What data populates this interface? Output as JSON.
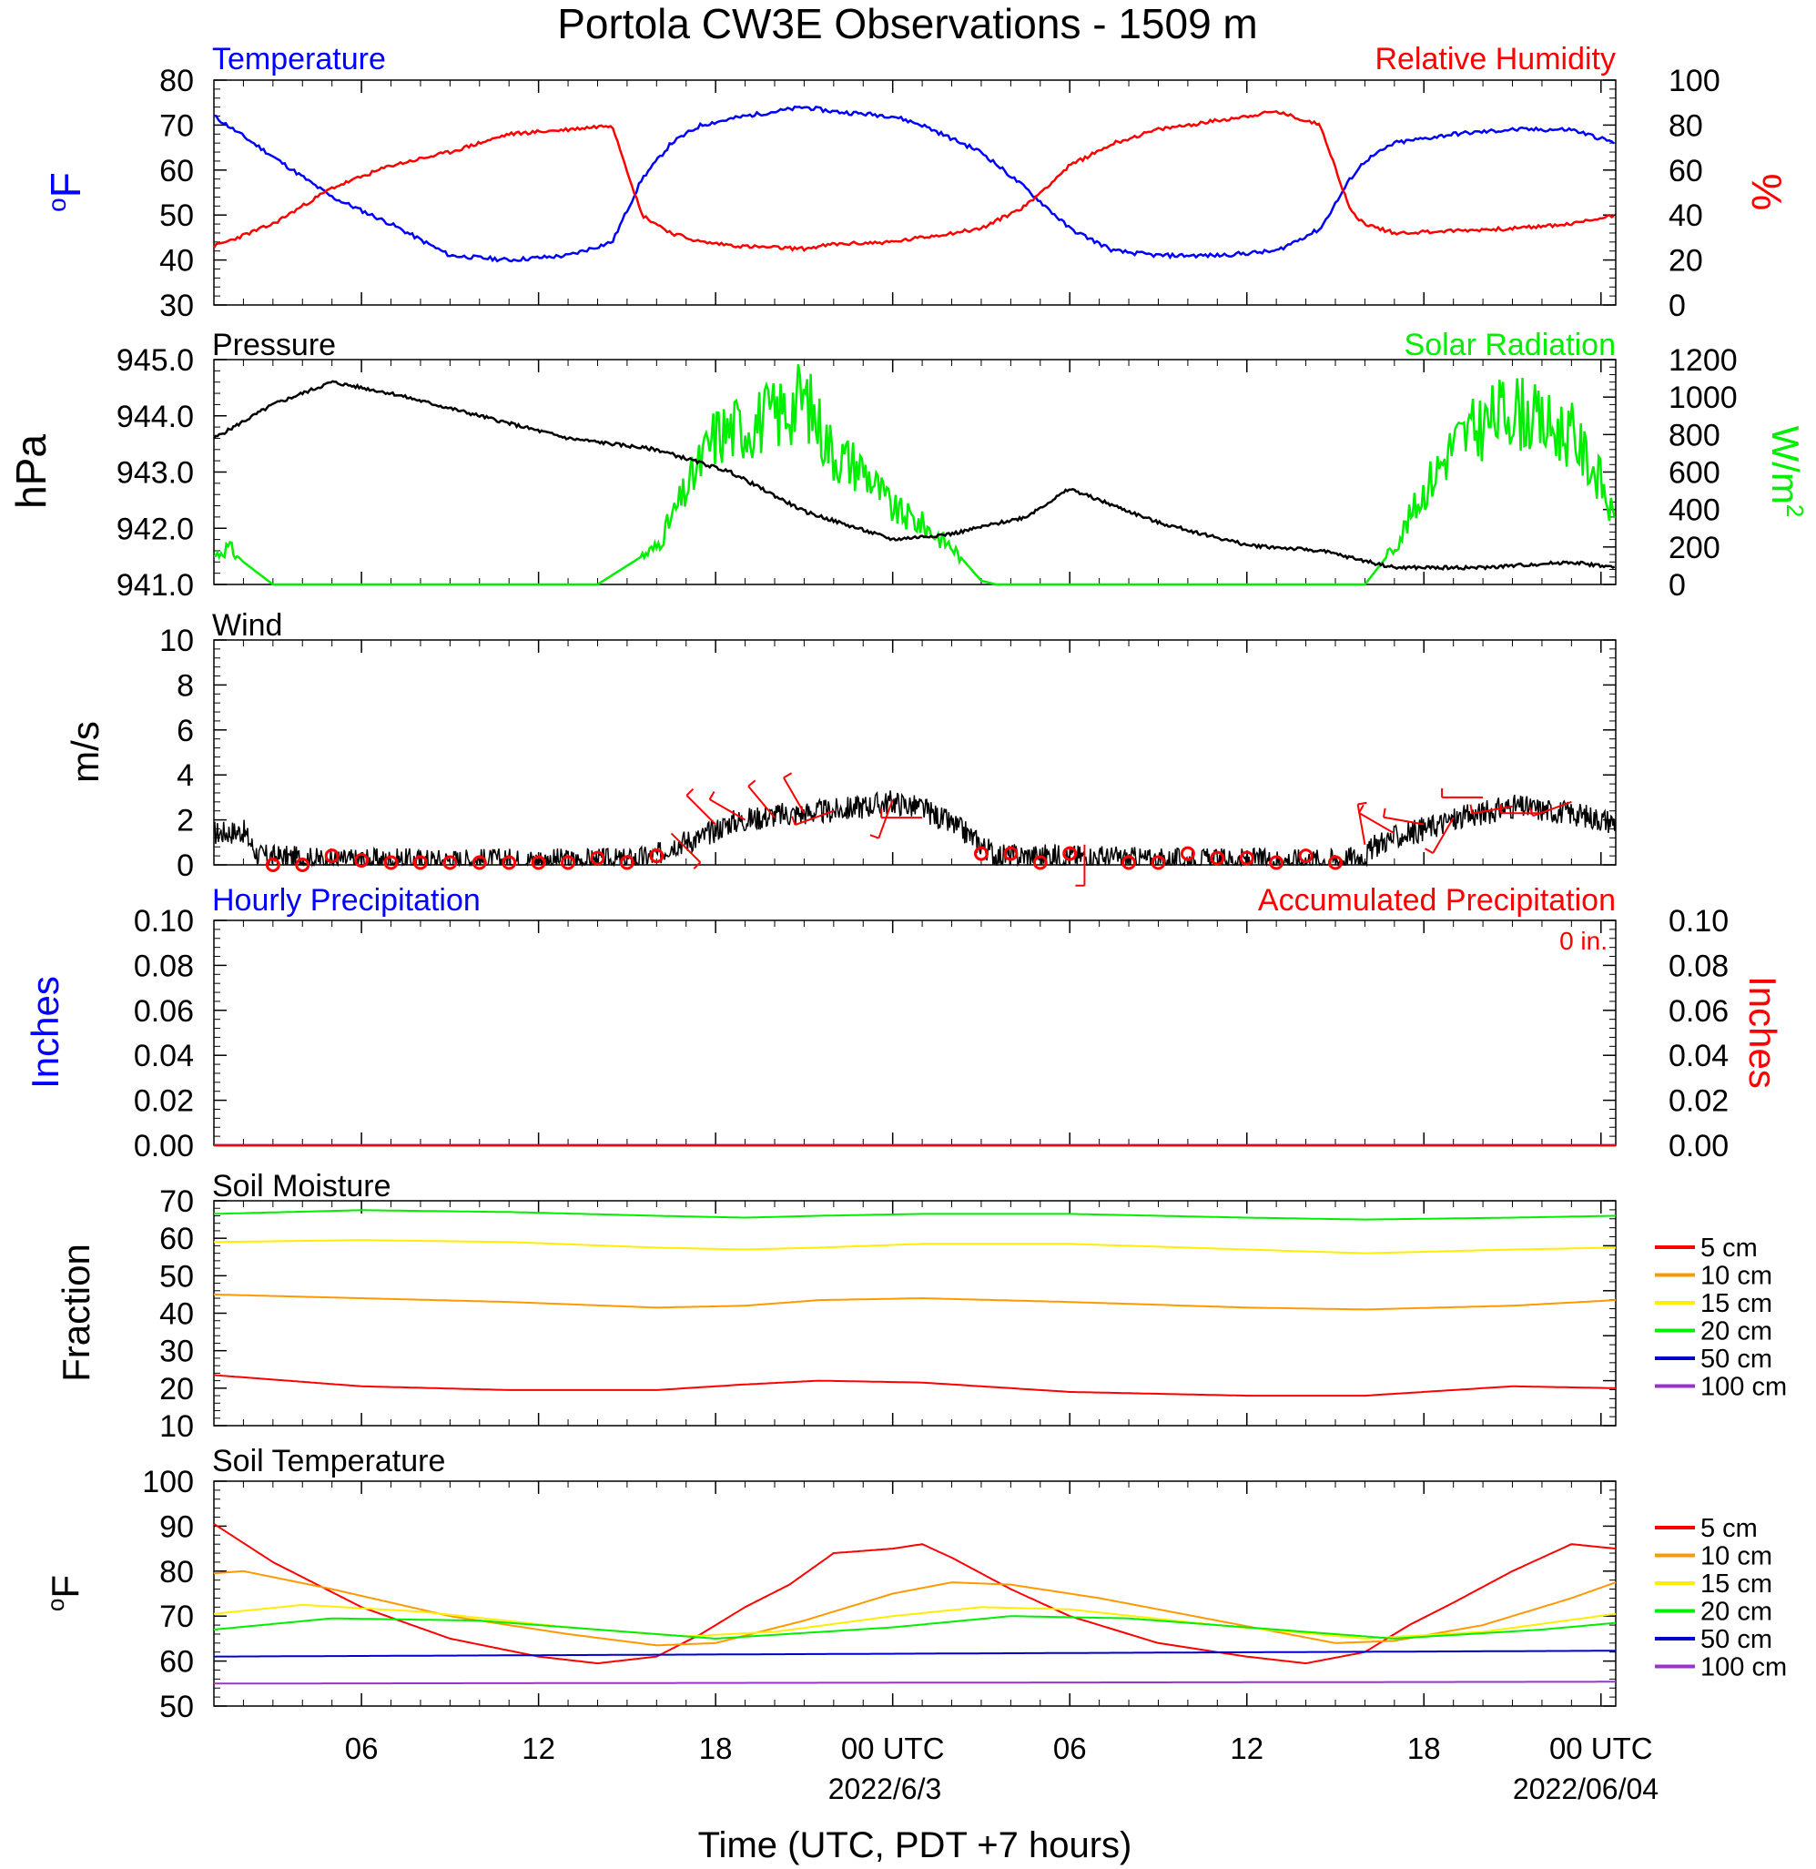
{
  "title": "Portola CW3E Observations - 1509 m",
  "xlabel": "Time (UTC, PDT +7 hours)",
  "x_tick_labels": [
    "06",
    "12",
    "18",
    "00 UTC",
    "06",
    "12",
    "18",
    "00 UTC"
  ],
  "x_date_labels": [
    "2022/6/3",
    "2022/06/04"
  ],
  "colors": {
    "temperature": "#0000ff",
    "humidity": "#ff0000",
    "pressure": "#000000",
    "solar": "#00ee00",
    "wind": "#000000",
    "barb": "#ff0000",
    "soil_5": "#ff0000",
    "soil_10": "#ff9900",
    "soil_15": "#ffee00",
    "soil_20": "#00ee00",
    "soil_50": "#0000cc",
    "soil_100": "#9933cc"
  },
  "chart_data": [
    {
      "type": "line",
      "panel": "temperature-humidity",
      "left_title": "Temperature",
      "right_title": "Relative Humidity",
      "ylabel_left": "oF",
      "ylabel_right": "%",
      "ylim_left": [
        30,
        80
      ],
      "ylim_right": [
        0,
        100
      ],
      "yticks_left": [
        "80",
        "70",
        "60",
        "50",
        "40",
        "30"
      ],
      "yticks_right": [
        "100",
        "80",
        "60",
        "40",
        "20",
        "0"
      ],
      "x_hours": [
        1,
        3,
        5,
        7,
        9,
        11,
        13,
        14.5,
        15.5,
        16.5,
        17.5,
        19,
        21,
        22,
        24,
        25,
        27,
        28.5,
        30,
        31.5,
        33,
        35,
        37,
        38.5,
        39.5,
        40,
        41,
        43,
        45,
        47,
        48.5
      ],
      "series": [
        {
          "name": "Temperature",
          "axis": "left",
          "values": [
            72,
            63,
            54,
            48,
            41,
            40,
            41,
            44,
            58,
            66,
            70,
            72,
            74,
            73,
            72,
            70,
            64,
            56,
            47,
            42,
            41,
            41,
            42,
            47,
            58,
            62,
            66,
            68,
            69,
            69,
            66
          ]
        },
        {
          "name": "Relative Humidity",
          "axis": "right",
          "values": [
            26,
            36,
            52,
            62,
            68,
            76,
            78,
            80,
            40,
            32,
            28,
            26,
            25,
            27,
            28,
            30,
            34,
            44,
            62,
            72,
            78,
            82,
            86,
            80,
            42,
            36,
            32,
            33,
            34,
            36,
            40
          ]
        }
      ]
    },
    {
      "type": "line",
      "panel": "pressure-solar",
      "left_title": "Pressure",
      "right_title": "Solar Radiation",
      "ylabel_left": "hPa",
      "ylabel_right": "W/m2",
      "ylim_left": [
        941.0,
        945.0
      ],
      "ylim_right": [
        0,
        1200
      ],
      "yticks_left": [
        "945.0",
        "944.0",
        "943.0",
        "942.0",
        "941.0"
      ],
      "yticks_right": [
        "1200",
        "1000",
        "800",
        "600",
        "400",
        "200",
        "0"
      ],
      "series": [
        {
          "name": "Pressure",
          "axis": "left",
          "x_hours": [
            1,
            3,
            5,
            7,
            10,
            13,
            16,
            18.5,
            21,
            24,
            26,
            28.5,
            30,
            33,
            36,
            38.5,
            41,
            44,
            47,
            48.5
          ],
          "values": [
            943.6,
            944.2,
            944.6,
            944.4,
            944.0,
            943.6,
            943.4,
            943.0,
            942.3,
            941.8,
            941.9,
            942.2,
            942.7,
            942.1,
            941.7,
            941.6,
            941.3,
            941.3,
            941.4,
            941.3
          ]
        },
        {
          "name": "Solar Radiation",
          "axis": "right",
          "x_hours": [
            1,
            1.5,
            2,
            3,
            14,
            16,
            17,
            18,
            19,
            20,
            21,
            22,
            23,
            24,
            25,
            26,
            27,
            27.5,
            40,
            41,
            42,
            43,
            44,
            45,
            46,
            47,
            48,
            48.5
          ],
          "values": [
            150,
            200,
            120,
            0,
            0,
            200,
            500,
            800,
            850,
            900,
            1000,
            700,
            620,
            400,
            320,
            200,
            20,
            0,
            0,
            200,
            500,
            750,
            850,
            950,
            850,
            800,
            550,
            300
          ]
        }
      ]
    },
    {
      "type": "line",
      "panel": "wind",
      "left_title": "Wind",
      "ylabel_left": "m/s",
      "ylim_left": [
        0,
        10
      ],
      "yticks_left": [
        "10",
        "8",
        "6",
        "4",
        "2",
        "0"
      ],
      "series": [
        {
          "name": "Wind",
          "x_hours": [
            1,
            2,
            2.5,
            5,
            10,
            15,
            16,
            16.5,
            17.5,
            18.5,
            20,
            22,
            24,
            25,
            26,
            26.5,
            27.5,
            30,
            33,
            36,
            39,
            40,
            40.5,
            42,
            43,
            45,
            47,
            48.5
          ],
          "values": [
            1.4,
            1.5,
            0.4,
            0.2,
            0.2,
            0.2,
            0.4,
            0.9,
            1.2,
            1.9,
            2.2,
            2.4,
            2.8,
            2.5,
            1.8,
            1.4,
            0.4,
            0.4,
            0.2,
            0.2,
            0.2,
            0.4,
            1.0,
            1.6,
            2.0,
            2.6,
            2.3,
            1.9
          ]
        }
      ],
      "barbs": {
        "calm_hours": [
          3,
          4,
          5,
          6,
          7,
          8,
          9,
          10,
          11,
          12,
          13,
          14,
          15,
          16,
          27,
          28,
          29,
          30,
          32,
          33,
          34,
          35,
          36,
          37,
          38,
          39
        ],
        "calm_speeds": [
          0,
          0,
          0.4,
          0.2,
          0.1,
          0.1,
          0.1,
          0.1,
          0.1,
          0.1,
          0.1,
          0.3,
          0.1,
          0.4,
          0.5,
          0.5,
          0.1,
          0.5,
          0.1,
          0.1,
          0.5,
          0.3,
          0.3,
          0.1,
          0.4,
          0.1
        ],
        "hours": [
          16.5,
          18,
          19,
          20,
          21,
          22,
          24,
          25,
          30.5,
          40,
          41,
          42,
          43,
          44,
          45,
          46,
          47
        ],
        "speeds": [
          1.4,
          1.8,
          2.0,
          2.1,
          2.3,
          2.4,
          2.9,
          2.1,
          0.9,
          0.9,
          1.4,
          1.8,
          2.1,
          3.0,
          2.6,
          2.3,
          2.8
        ],
        "directions_deg": [
          135,
          315,
          300,
          320,
          330,
          250,
          200,
          270,
          180,
          350,
          300,
          280,
          210,
          270,
          260,
          270,
          250
        ]
      }
    },
    {
      "type": "line",
      "panel": "precipitation",
      "left_title": "Hourly Precipitation",
      "right_title": "Accumulated Precipitation",
      "annotation": "0 in.",
      "ylabel_left": "Inches",
      "ylabel_right": "Inches",
      "ylim_left": [
        0,
        0.1
      ],
      "ylim_right": [
        0,
        0.1
      ],
      "yticks_left": [
        "0.10",
        "0.08",
        "0.06",
        "0.04",
        "0.02",
        "0.00"
      ],
      "yticks_right": [
        "0.10",
        "0.08",
        "0.06",
        "0.04",
        "0.02",
        "0.00"
      ],
      "x_hours": [
        1,
        48.5
      ],
      "series": [
        {
          "name": "Hourly Precipitation",
          "axis": "left",
          "values": [
            0,
            0
          ]
        },
        {
          "name": "Accumulated Precipitation",
          "axis": "right",
          "values": [
            0,
            0
          ]
        }
      ]
    },
    {
      "type": "line",
      "panel": "soil-moisture",
      "left_title": "Soil Moisture",
      "ylabel_left": "Fraction",
      "ylim_left": [
        10,
        70
      ],
      "yticks_left": [
        "70",
        "60",
        "50",
        "40",
        "30",
        "20",
        "10"
      ],
      "legend": [
        "5 cm",
        "10 cm",
        "15 cm",
        "20 cm",
        "50 cm",
        "100 cm"
      ],
      "x_hours": [
        1,
        6,
        11,
        16,
        19,
        21.5,
        25,
        30,
        36,
        40,
        45,
        48.5
      ],
      "series": [
        {
          "name": "5 cm",
          "values": [
            23.5,
            20.5,
            19.5,
            19.5,
            21,
            22,
            21.5,
            19,
            18,
            18,
            20.5,
            20
          ]
        },
        {
          "name": "10 cm",
          "values": [
            45,
            44,
            43,
            41.5,
            42,
            43.5,
            44,
            43,
            41.5,
            41,
            42,
            43.5
          ]
        },
        {
          "name": "15 cm",
          "values": [
            59,
            59.5,
            59,
            57.5,
            57,
            57.5,
            58.5,
            58.5,
            57,
            56,
            57,
            57.5
          ]
        },
        {
          "name": "20 cm",
          "values": [
            66.5,
            67.5,
            67,
            66,
            65.5,
            66,
            66.5,
            66.5,
            65.5,
            65,
            65.5,
            66
          ]
        }
      ]
    },
    {
      "type": "line",
      "panel": "soil-temperature",
      "left_title": "Soil Temperature",
      "ylabel_left": "oF",
      "ylim_left": [
        50,
        100
      ],
      "yticks_left": [
        "100",
        "90",
        "80",
        "70",
        "60",
        "50"
      ],
      "legend": [
        "5 cm",
        "10 cm",
        "15 cm",
        "20 cm",
        "50 cm",
        "100 cm"
      ],
      "series": [
        {
          "name": "5 cm",
          "x_hours": [
            1,
            3,
            6,
            9,
            12,
            14,
            16,
            17.5,
            19,
            20.5,
            22,
            24,
            25,
            26,
            28,
            30,
            33,
            36,
            38,
            40,
            41.5,
            43,
            45,
            47,
            48.5
          ],
          "values": [
            90.5,
            82,
            72,
            65,
            61,
            59.5,
            61,
            66,
            72,
            77,
            84,
            85,
            86,
            83,
            76,
            70,
            64,
            61,
            59.5,
            62,
            68,
            73,
            80,
            86,
            85
          ]
        },
        {
          "name": "10 cm",
          "x_hours": [
            1,
            2,
            5,
            9,
            13,
            16,
            18,
            21,
            24,
            26,
            28,
            31,
            35,
            39,
            41,
            44,
            47,
            48.5
          ],
          "values": [
            79.5,
            80,
            76,
            70,
            66,
            63.5,
            64,
            69,
            75,
            77.5,
            77,
            74,
            69,
            64,
            64.5,
            68,
            74,
            77.5
          ]
        },
        {
          "name": "15 cm",
          "x_hours": [
            1,
            4,
            8,
            13,
            17,
            20,
            24,
            27,
            30,
            35,
            40,
            44,
            48.5
          ],
          "values": [
            70.5,
            72.5,
            71,
            67.5,
            65.5,
            66.5,
            70,
            72,
            71.5,
            68,
            65,
            66.5,
            70.5
          ]
        },
        {
          "name": "20 cm",
          "x_hours": [
            1,
            5,
            10,
            15,
            18,
            24,
            28,
            32,
            37,
            41,
            46,
            48.5
          ],
          "values": [
            67,
            69.5,
            69,
            66.5,
            65,
            67.5,
            70,
            69.5,
            67,
            65,
            67,
            68.5
          ]
        },
        {
          "name": "50 cm",
          "x_hours": [
            1,
            48.5
          ],
          "values": [
            61,
            62.3
          ]
        },
        {
          "name": "100 cm",
          "x_hours": [
            1,
            48.5
          ],
          "values": [
            55,
            55.4
          ]
        }
      ]
    }
  ]
}
